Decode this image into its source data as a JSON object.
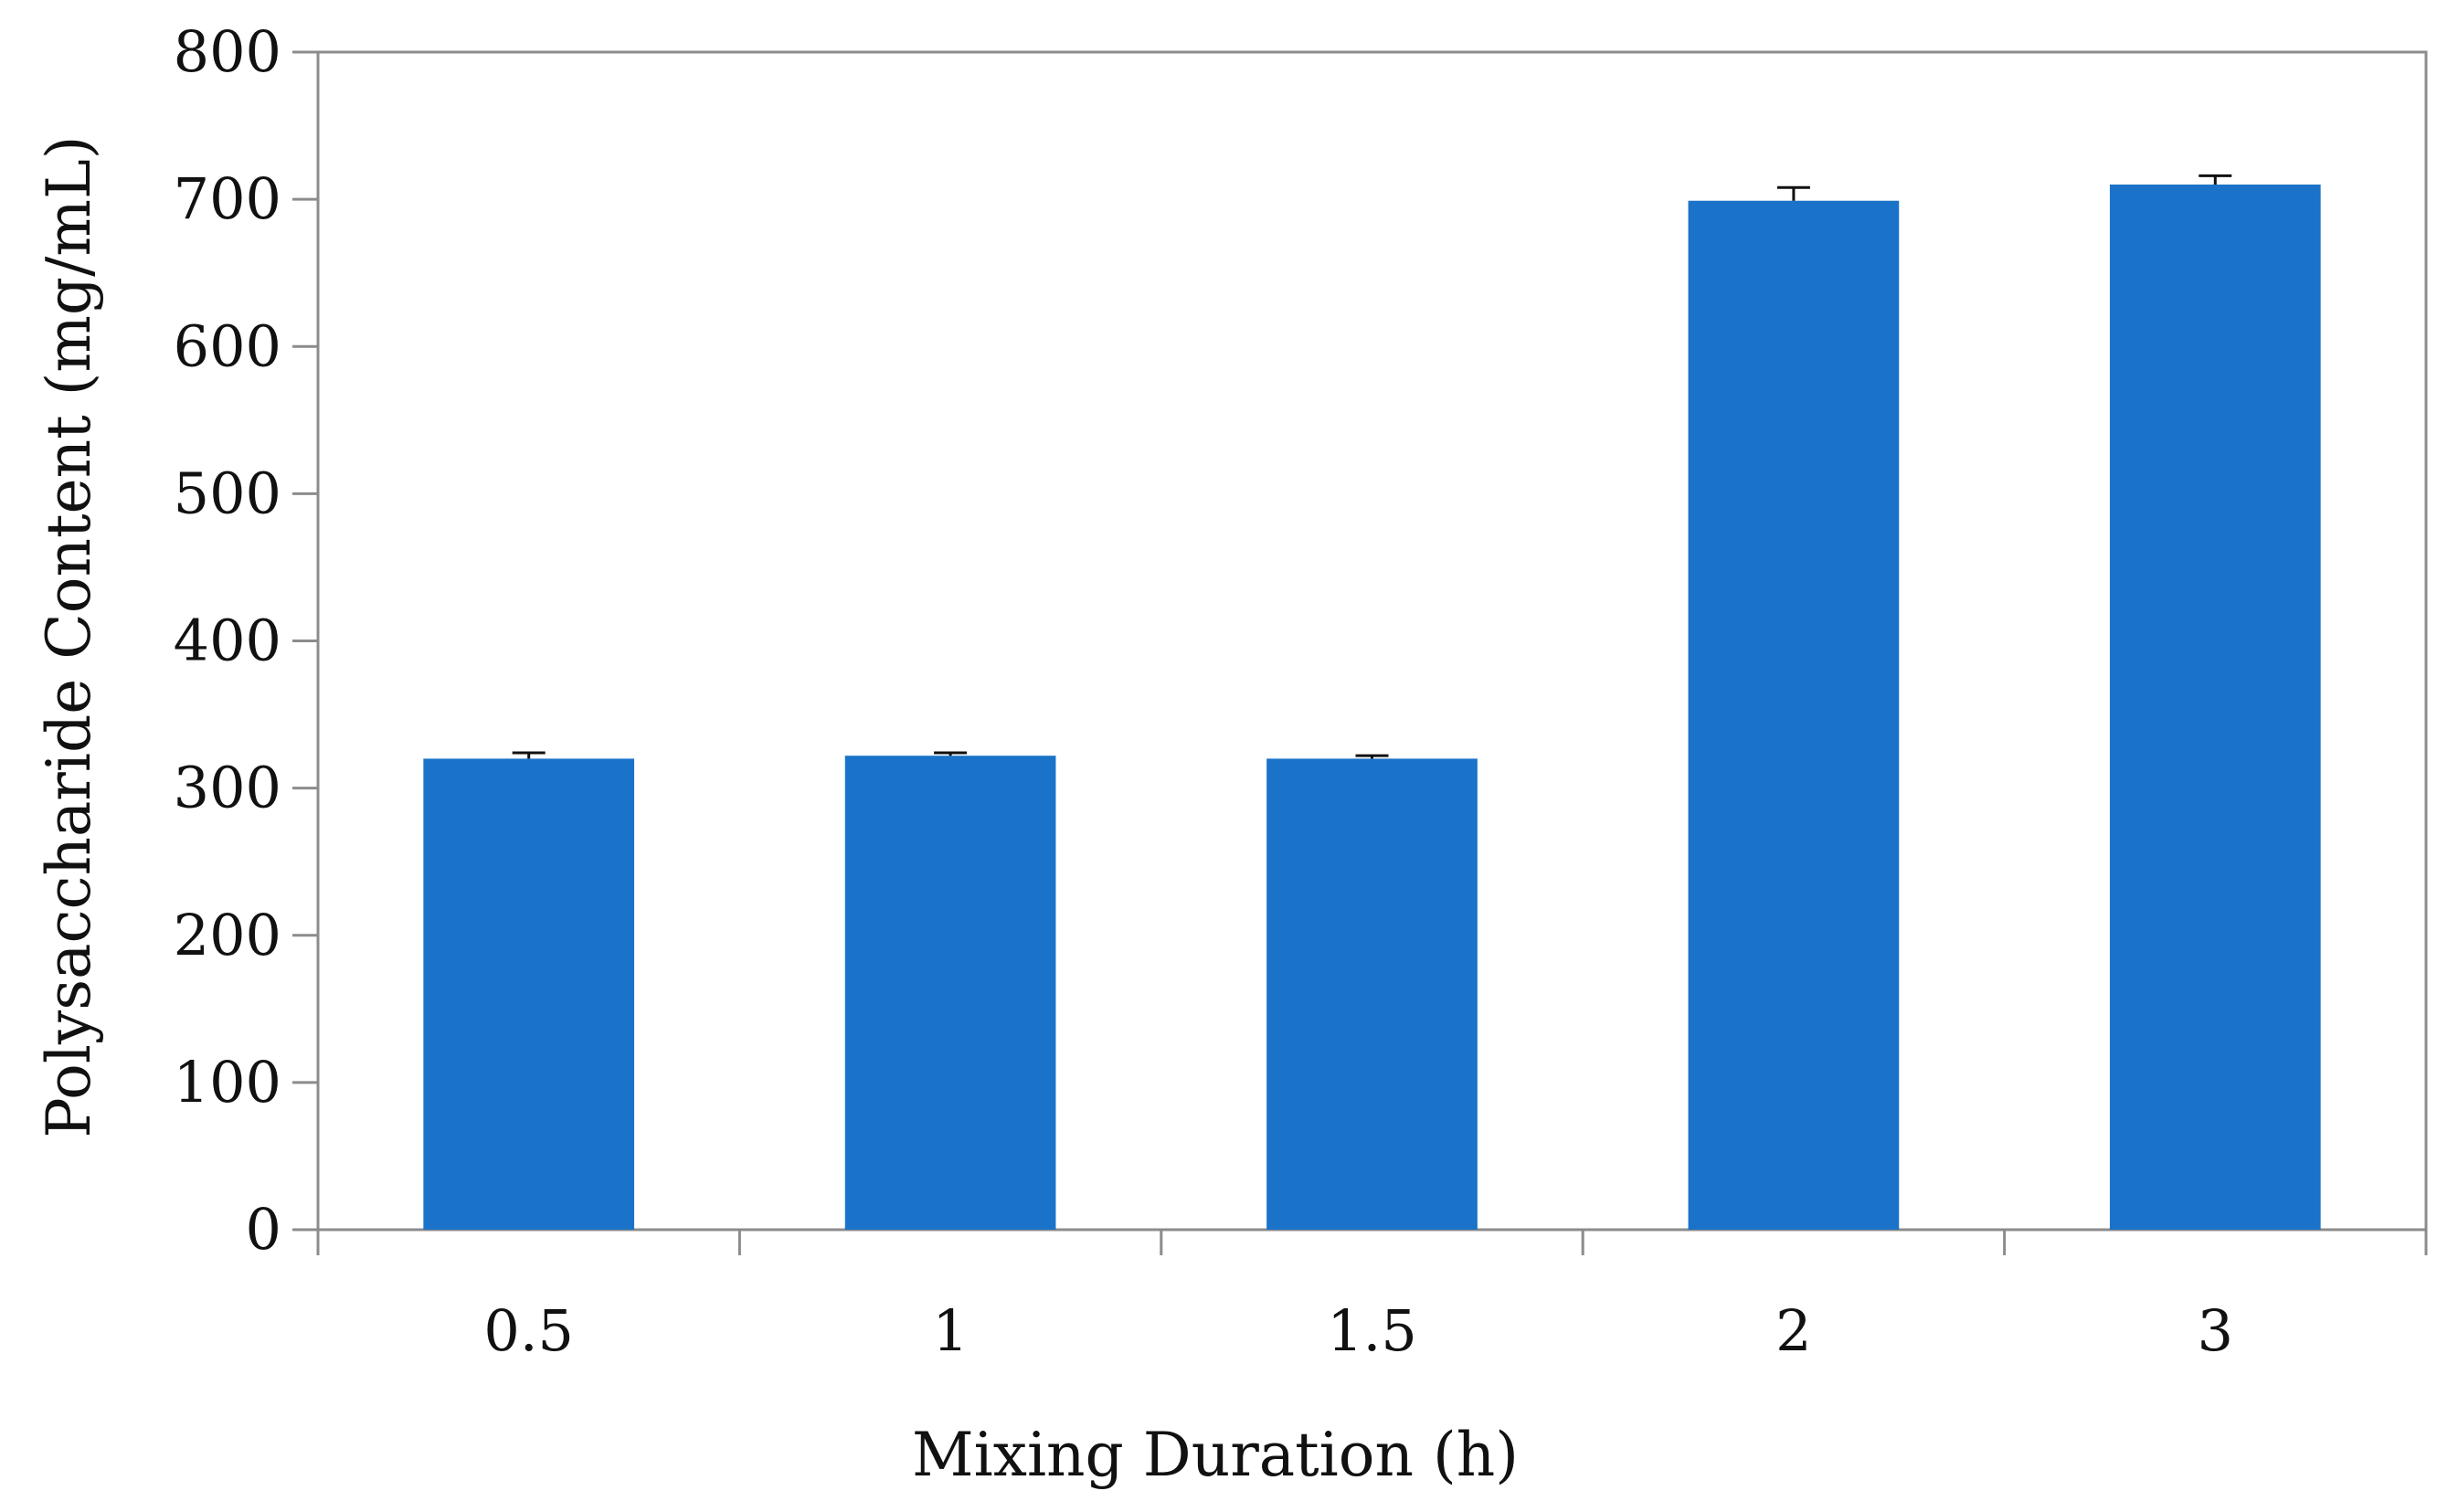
{
  "chart_data": {
    "type": "bar",
    "title": "",
    "xlabel": "Mixing Duration (h)",
    "ylabel": "Polysaccharide Content (mg/mL)",
    "categories": [
      "0.5",
      "1",
      "1.5",
      "2",
      "3"
    ],
    "values": [
      320,
      322,
      320,
      699,
      710
    ],
    "errors": [
      4,
      2,
      2,
      9,
      6
    ],
    "ylim": [
      0,
      800
    ],
    "yticks": [
      0,
      100,
      200,
      300,
      400,
      500,
      600,
      700,
      800
    ],
    "grid": false,
    "legend": "none",
    "colors": {
      "bar": "#1a73c8",
      "axis": "#8c8c8c",
      "error_bar": "#111111"
    }
  }
}
